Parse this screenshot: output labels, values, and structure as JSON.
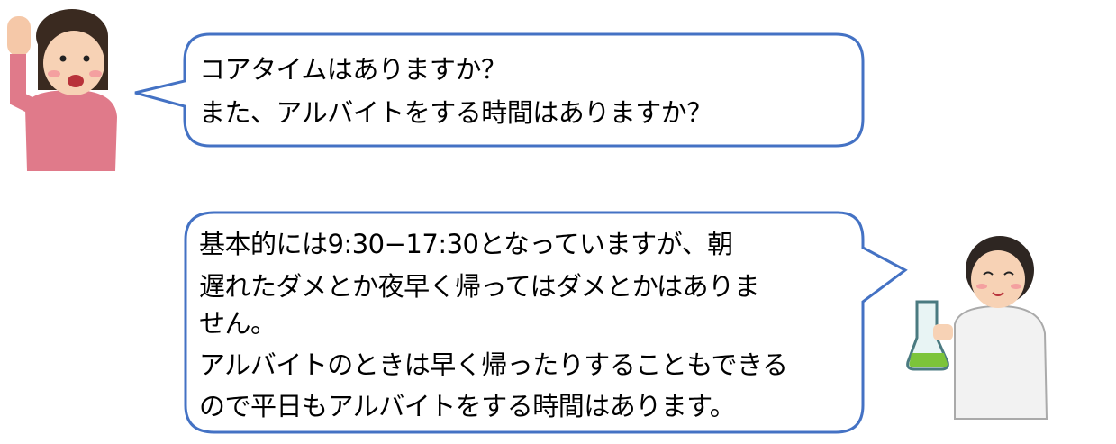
{
  "colors": {
    "bubble_border": "#4472C4",
    "bubble_fill": "#FFFFFF",
    "text": "#000000"
  },
  "student": {
    "icon": "raising-hand-girl-illustration",
    "lines": [
      "コアタイムはありますか？",
      "また、アルバイトをする時間はありますか？"
    ]
  },
  "scientist": {
    "icon": "scientist-with-flask-illustration",
    "lines": [
      "基本的には9:30−17:30となっていますが、朝",
      "遅れたダメとか夜早く帰ってはダメとかはありま",
      "せん。",
      "アルバイトのときは早く帰ったりすることもできる",
      "ので平日もアルバイトをする時間はあります。"
    ]
  }
}
